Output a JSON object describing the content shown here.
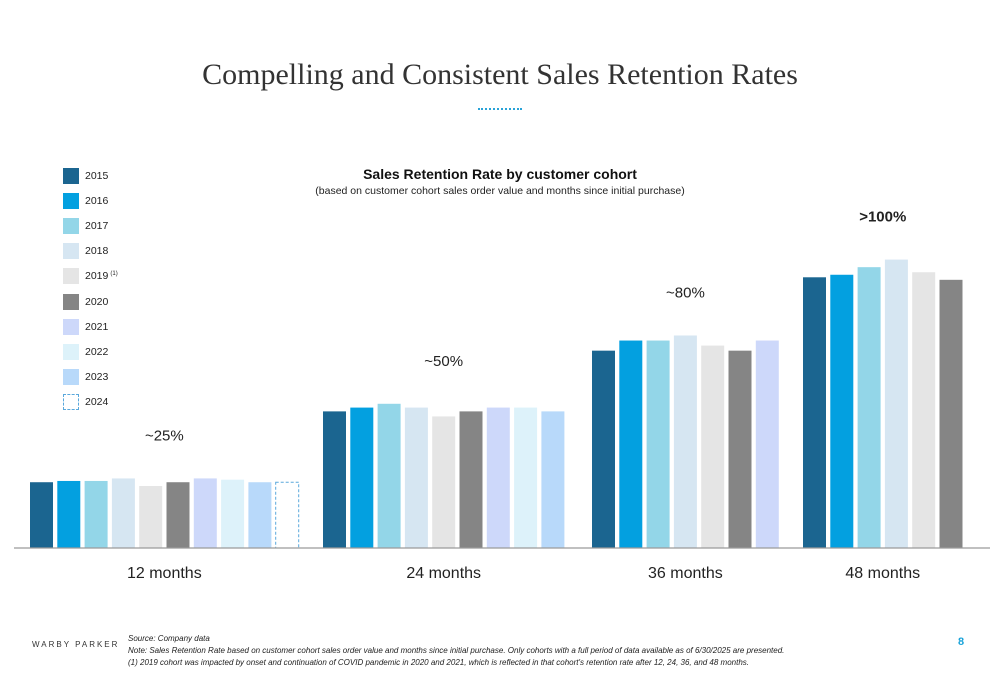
{
  "slide": {
    "title": "Compelling and Consistent Sales Retention Rates",
    "logo": "WARBY PARKER",
    "page_number": "8",
    "source": "Source: Company data",
    "note": "Note: Sales Retention Rate based on customer cohort sales order value and months since initial purchase. Only cohorts with a full period of data available as of 6/30/2025 are presented.",
    "footnote1": "(1) 2019 cohort was impacted by onset and continuation of COVID pandemic in 2020 and 2021, which is reflected in that cohort's retention rate after 12, 24, 36, and 48 months."
  },
  "chart_data": {
    "type": "bar",
    "title": "Sales Retention Rate by customer cohort",
    "subtitle": "(based on customer cohort sales order value and months since initial purchase)",
    "categories": [
      "12 months",
      "24 months",
      "36 months",
      "48 months"
    ],
    "annotations": [
      "~25%",
      "~50%",
      "~80%",
      ">100%"
    ],
    "ylim": [
      0,
      115
    ],
    "grid": false,
    "legend_position": "left",
    "series": [
      {
        "name": "2015",
        "color": "#1b6590",
        "style": "solid",
        "values": [
          26,
          54,
          78,
          107
        ]
      },
      {
        "name": "2016",
        "color": "#03a0e0",
        "style": "solid",
        "values": [
          26.5,
          55.5,
          82,
          108
        ]
      },
      {
        "name": "2017",
        "color": "#93d6e8",
        "style": "solid",
        "values": [
          26.5,
          57,
          82,
          111
        ]
      },
      {
        "name": "2018",
        "color": "#d6e6f2",
        "style": "solid",
        "values": [
          27.5,
          55.5,
          84,
          114
        ]
      },
      {
        "name": "2019",
        "legend_note": "(1)",
        "color": "#e5e5e5",
        "style": "solid",
        "values": [
          24.5,
          52,
          80,
          109
        ]
      },
      {
        "name": "2020",
        "color": "#858585",
        "style": "solid",
        "values": [
          26,
          54,
          78,
          106
        ]
      },
      {
        "name": "2021",
        "color": "#cdd8fa",
        "style": "solid",
        "values": [
          27.5,
          55.5,
          82,
          null
        ]
      },
      {
        "name": "2022",
        "color": "#ddf2fa",
        "style": "solid",
        "values": [
          27,
          55.5,
          null,
          null
        ]
      },
      {
        "name": "2023",
        "color": "#b8d9fa",
        "style": "solid",
        "values": [
          26,
          54,
          null,
          null
        ]
      },
      {
        "name": "2024",
        "color": "#5aa8dc",
        "style": "dashed",
        "values": [
          26,
          null,
          null,
          null
        ]
      }
    ]
  }
}
